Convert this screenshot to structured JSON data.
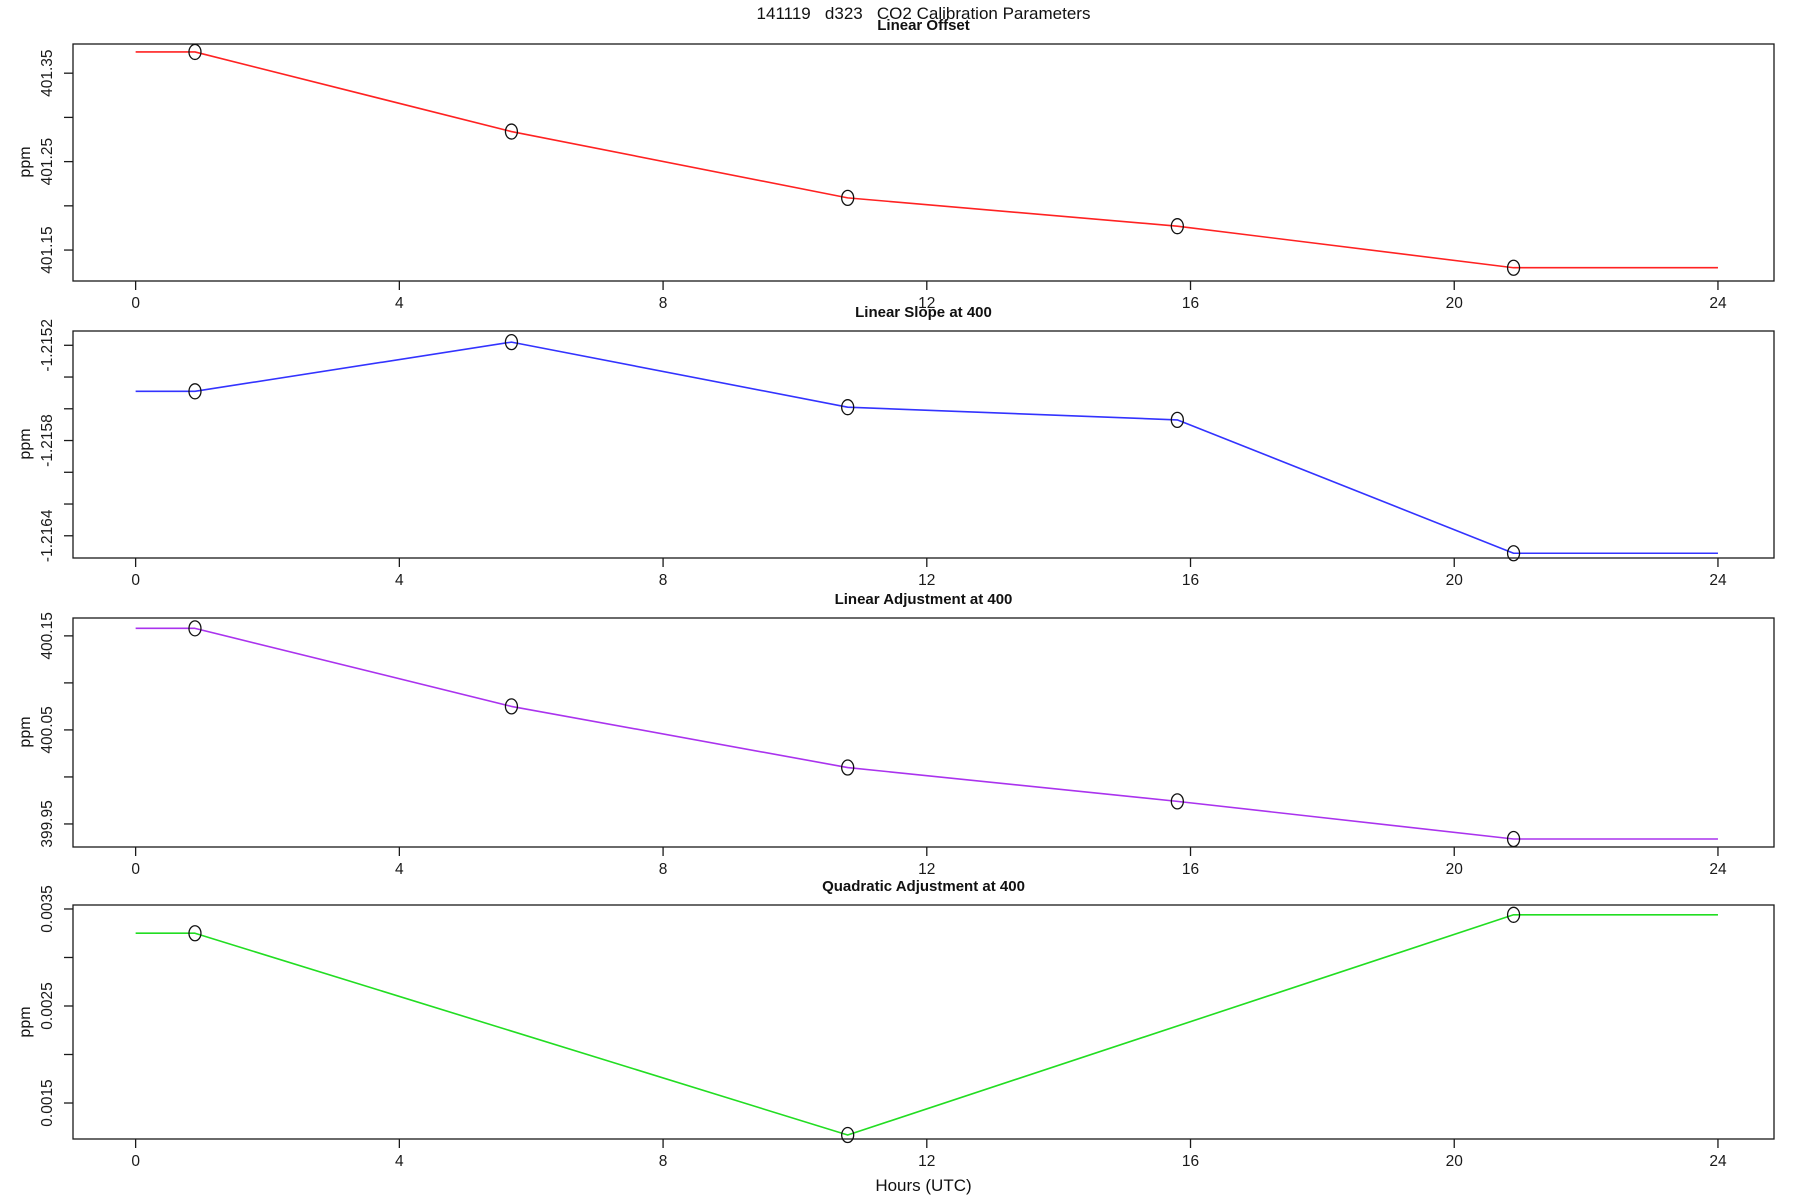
{
  "page_title": "141119   d323   CO2 Calibration Parameters",
  "xlabel": "Hours (UTC)",
  "marker_color": "#111111",
  "chart_data": [
    {
      "type": "line",
      "title": "Linear Offset",
      "ylabel": "ppm",
      "color": "#ff2222",
      "marker": "open-circle",
      "x": [
        0.9,
        5.7,
        10.8,
        15.8,
        20.9
      ],
      "y": [
        401.374,
        401.284,
        401.209,
        401.177,
        401.13
      ],
      "line_extends_flat_from_to": [
        0,
        24
      ],
      "xlim": [
        -0.95,
        24.85
      ],
      "ylim": [
        401.115,
        401.383
      ],
      "xticks": [
        0,
        4,
        8,
        12,
        16,
        20,
        24
      ],
      "yticks_labeled": [
        401.15,
        401.25,
        401.35
      ],
      "ytick_labels": [
        "401.15",
        "401.25",
        "401.35"
      ],
      "yticks_minor": [
        401.2,
        401.3
      ],
      "grid": false,
      "legend": "none"
    },
    {
      "type": "line",
      "title": "Linear Slope at 400",
      "ylabel": "ppm",
      "color": "#3333ff",
      "marker": "open-circle",
      "x": [
        0.9,
        5.7,
        10.8,
        15.8,
        20.9
      ],
      "y": [
        -1.21549,
        -1.21518,
        -1.21559,
        -1.21567,
        -1.21651
      ],
      "line_extends_flat_from_to": [
        0,
        24
      ],
      "xlim": [
        -0.95,
        24.85
      ],
      "ylim": [
        -1.21654,
        -1.21511
      ],
      "xticks": [
        0,
        4,
        8,
        12,
        16,
        20,
        24
      ],
      "yticks_labeled": [
        -1.2152,
        -1.2158,
        -1.2164
      ],
      "ytick_labels": [
        "-1.2152",
        "-1.2158",
        "-1.2164"
      ],
      "yticks_minor": [
        -1.2154,
        -1.2156,
        -1.216,
        -1.2162
      ],
      "grid": false,
      "legend": "none"
    },
    {
      "type": "line",
      "title": "Linear Adjustment at 400",
      "ylabel": "ppm",
      "color": "#aa33ee",
      "marker": "open-circle",
      "x": [
        0.9,
        5.7,
        10.8,
        15.8,
        20.9
      ],
      "y": [
        400.158,
        400.075,
        400.01,
        399.974,
        399.934
      ],
      "line_extends_flat_from_to": [
        0,
        24
      ],
      "xlim": [
        -0.95,
        24.85
      ],
      "ylim": [
        399.9255,
        400.169
      ],
      "xticks": [
        0,
        4,
        8,
        12,
        16,
        20,
        24
      ],
      "yticks_labeled": [
        399.95,
        400.05,
        400.15
      ],
      "ytick_labels": [
        "399.95",
        "400.05",
        "400.15"
      ],
      "yticks_minor": [
        400.0,
        400.1
      ],
      "grid": false,
      "legend": "none"
    },
    {
      "type": "line",
      "title": "Quadratic Adjustment at 400",
      "ylabel": "ppm",
      "color": "#22dd22",
      "marker": "open-circle",
      "x": [
        0.9,
        10.8,
        20.9
      ],
      "y": [
        0.00325,
        0.00117,
        0.00344
      ],
      "line_extends_flat_from_to": [
        0,
        24
      ],
      "xlim": [
        -0.95,
        24.85
      ],
      "ylim": [
        0.001129,
        0.003541
      ],
      "xticks": [
        0,
        4,
        8,
        12,
        16,
        20,
        24
      ],
      "yticks_labeled": [
        0.0015,
        0.0025,
        0.0035
      ],
      "ytick_labels": [
        "0.0015",
        "0.0025",
        "0.0035"
      ],
      "yticks_minor": [
        0.002,
        0.003
      ],
      "grid": false,
      "legend": "none"
    }
  ]
}
